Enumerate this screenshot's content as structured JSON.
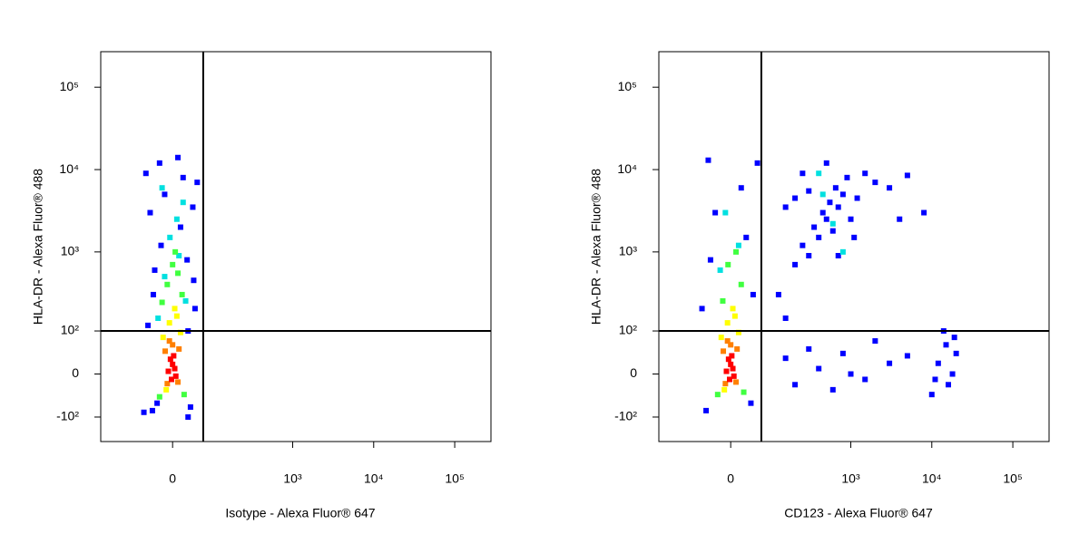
{
  "chart_data": [
    {
      "type": "scatter",
      "xlabel": "Isotype - Alexa Fluor® 647",
      "ylabel": "HLA-DR - Alexa Fluor® 488",
      "xscale": "biexponential",
      "yscale": "biexponential",
      "xlim": [
        -250,
        280000
      ],
      "ylim": [
        -213,
        270000
      ],
      "xticks": [
        0,
        {
          "value": 1000,
          "label": "10³"
        },
        {
          "value": 10000,
          "label": "10⁴"
        },
        {
          "value": 100000,
          "label": "10⁵"
        }
      ],
      "yticks": [
        {
          "value": -100,
          "label": "-10²"
        },
        0,
        {
          "value": 100,
          "label": "10²"
        },
        {
          "value": 1000,
          "label": "10³"
        },
        {
          "value": 10000,
          "label": "10⁴"
        },
        {
          "value": 100000,
          "label": "10⁵"
        }
      ],
      "quadrant": {
        "x": 65,
        "y": 100
      },
      "series": [
        {
          "color": "#0000ff",
          "x": [
            -40,
            35,
            -30,
            30,
            -50,
            45,
            -35,
            28,
            -22,
            15,
            -45,
            40,
            -15,
            20,
            -55,
            50,
            -25,
            10,
            -60,
            30,
            -38,
            42
          ],
          "y": [
            -80,
            -70,
            -60,
            100,
            120,
            200,
            600,
            800,
            1200,
            2000,
            3000,
            3500,
            5000,
            8000,
            9000,
            7000,
            12000,
            14000,
            -85,
            -100,
            300,
            450
          ]
        },
        {
          "color": "#00e0e0",
          "x": [
            -28,
            25,
            -15,
            12,
            -5,
            8,
            20,
            -20
          ],
          "y": [
            150,
            250,
            500,
            900,
            1500,
            2500,
            4000,
            6000
          ]
        },
        {
          "color": "#40ff40",
          "x": [
            -20,
            18,
            -10,
            10,
            0,
            -25,
            22,
            5
          ],
          "y": [
            240,
            300,
            400,
            550,
            700,
            -45,
            -40,
            1000
          ]
        },
        {
          "color": "#ffff00",
          "x": [
            -18,
            15,
            -6,
            8,
            -12,
            4
          ],
          "y": [
            80,
            95,
            130,
            160,
            -30,
            200
          ]
        },
        {
          "color": "#ff8000",
          "x": [
            -14,
            12,
            -10,
            10,
            0,
            -6
          ],
          "y": [
            45,
            50,
            -18,
            -15,
            60,
            70
          ]
        },
        {
          "color": "#ff0000",
          "x": [
            -8,
            0,
            6,
            -4,
            4,
            -2,
            2
          ],
          "y": [
            5,
            18,
            -4,
            28,
            10,
            -10,
            35
          ]
        }
      ]
    },
    {
      "type": "scatter",
      "xlabel": "CD123 - Alexa Fluor® 647",
      "ylabel": "HLA-DR - Alexa Fluor® 488",
      "xscale": "biexponential",
      "yscale": "biexponential",
      "xlim": [
        -250,
        280000
      ],
      "ylim": [
        -213,
        270000
      ],
      "xticks": [
        0,
        {
          "value": 1000,
          "label": "10³"
        },
        {
          "value": 10000,
          "label": "10⁴"
        },
        {
          "value": 100000,
          "label": "10⁵"
        }
      ],
      "yticks": [
        {
          "value": -100,
          "label": "-10²"
        },
        0,
        {
          "value": 100,
          "label": "10²"
        },
        {
          "value": 1000,
          "label": "10³"
        },
        {
          "value": 10000,
          "label": "10⁴"
        },
        {
          "value": 100000,
          "label": "10⁵"
        }
      ],
      "quadrant": {
        "x": 65,
        "y": 100
      },
      "series": [
        {
          "color": "#0000ff",
          "x": [
            -50,
            40,
            -60,
            45,
            -40,
            30,
            -30,
            20,
            -45,
            55,
            120,
            150,
            200,
            250,
            300,
            350,
            400,
            450,
            500,
            550,
            600,
            650,
            700,
            800,
            900,
            1000,
            1200,
            1500,
            2000,
            3000,
            5000,
            8000,
            4000,
            300,
            200,
            500,
            250,
            700,
            1100,
            150,
            150,
            200,
            300,
            400,
            600,
            800,
            1000,
            1500,
            2000,
            3000,
            5000,
            10000,
            12000,
            15000,
            18000,
            20000,
            16000,
            14000,
            19000,
            11000
          ],
          "y": [
            -80,
            -60,
            200,
            300,
            800,
            1500,
            3000,
            6000,
            13000,
            12000,
            300,
            150,
            700,
            1200,
            900,
            2000,
            1500,
            3000,
            2500,
            4000,
            1800,
            6000,
            3500,
            5000,
            8000,
            2500,
            4500,
            9000,
            7000,
            6000,
            8500,
            3000,
            2500,
            5500,
            4500,
            12000,
            9000,
            900,
            1500,
            3500,
            30,
            -20,
            50,
            10,
            -30,
            40,
            0,
            -10,
            70,
            20,
            35,
            -40,
            20,
            60,
            0,
            40,
            -20,
            100,
            80,
            -10
          ]
        },
        {
          "color": "#00e0e0",
          "x": [
            -20,
            15,
            600,
            450,
            800,
            400,
            -10
          ],
          "y": [
            600,
            1200,
            2200,
            5000,
            1000,
            9000,
            3000
          ]
        },
        {
          "color": "#40ff40",
          "x": [
            -15,
            20,
            -5,
            10,
            -25,
            25
          ],
          "y": [
            250,
            400,
            700,
            1000,
            -40,
            -35
          ]
        },
        {
          "color": "#ffff00",
          "x": [
            -18,
            15,
            -6,
            8,
            -12,
            4
          ],
          "y": [
            80,
            95,
            130,
            160,
            -30,
            200
          ]
        },
        {
          "color": "#ff8000",
          "x": [
            -14,
            12,
            -10,
            10,
            0,
            -6
          ],
          "y": [
            45,
            50,
            -18,
            -15,
            60,
            70
          ]
        },
        {
          "color": "#ff0000",
          "x": [
            -8,
            0,
            6,
            -4,
            4,
            -2,
            2
          ],
          "y": [
            5,
            18,
            -4,
            28,
            10,
            -10,
            35
          ]
        }
      ]
    }
  ]
}
